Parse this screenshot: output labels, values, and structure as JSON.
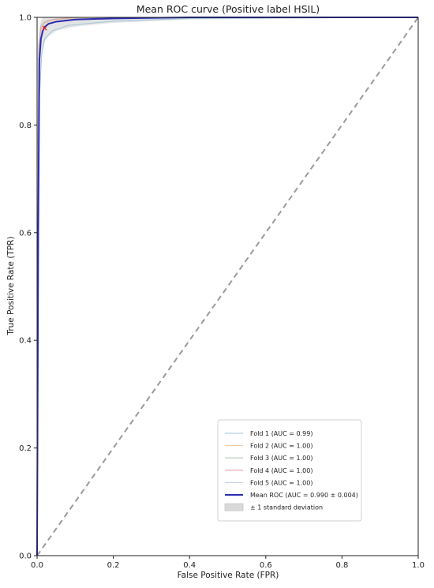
{
  "chart_data": {
    "type": "line",
    "title": "Mean ROC curve (Positive label HSIL)",
    "xlabel": "False Positive Rate (FPR)",
    "ylabel": "True Positive Rate (TPR)",
    "xlim": [
      0,
      1
    ],
    "ylim": [
      0,
      1
    ],
    "xticks": [
      "0.0",
      "0.2",
      "0.4",
      "0.6",
      "0.8",
      "1.0"
    ],
    "yticks": [
      "0.0",
      "0.2",
      "0.4",
      "0.6",
      "0.8",
      "1.0"
    ],
    "grid": false,
    "legend_position": "lower-right",
    "chance_line": {
      "x": [
        0,
        1
      ],
      "y": [
        0,
        1
      ],
      "color": "#9a9a9a"
    },
    "series": [
      {
        "name": "Fold 1 (AUC = 0.99)",
        "color": "#9ec5dd",
        "x": [
          0,
          0.003,
          0.006,
          0.012,
          0.02,
          0.04,
          0.08,
          0.2,
          0.4,
          1.0
        ],
        "y": [
          0,
          0.55,
          0.85,
          0.93,
          0.96,
          0.975,
          0.985,
          0.993,
          0.998,
          1.0
        ]
      },
      {
        "name": "Fold 2 (AUC = 1.00)",
        "color": "#f0c9a6",
        "x": [
          0,
          0.002,
          0.005,
          0.01,
          0.02,
          0.05,
          0.1,
          0.3,
          1.0
        ],
        "y": [
          0,
          0.7,
          0.93,
          0.975,
          0.99,
          0.996,
          0.998,
          1.0,
          1.0
        ]
      },
      {
        "name": "Fold 3 (AUC = 1.00)",
        "color": "#b9c9b9",
        "x": [
          0,
          0.002,
          0.004,
          0.01,
          0.02,
          0.05,
          0.12,
          1.0
        ],
        "y": [
          0,
          0.75,
          0.95,
          0.985,
          0.993,
          0.997,
          1.0,
          1.0
        ]
      },
      {
        "name": "Fold 4 (AUC = 1.00)",
        "color": "#e6a3a3",
        "x": [
          0,
          0.002,
          0.005,
          0.01,
          0.02,
          0.04,
          0.1,
          1.0
        ],
        "y": [
          0,
          0.72,
          0.94,
          0.98,
          0.99,
          0.996,
          1.0,
          1.0
        ]
      },
      {
        "name": "Fold 5 (AUC = 1.00)",
        "color": "#c7d0e6",
        "x": [
          0,
          0.002,
          0.005,
          0.01,
          0.02,
          0.05,
          0.1,
          0.25,
          1.0
        ],
        "y": [
          0,
          0.68,
          0.92,
          0.97,
          0.985,
          0.993,
          0.997,
          1.0,
          1.0
        ]
      },
      {
        "name": "Mean ROC (AUC = 0.990 ± 0.004)",
        "color": "#2b2bb3",
        "x": [
          0,
          0.003,
          0.006,
          0.01,
          0.015,
          0.02,
          0.03,
          0.05,
          0.1,
          0.2,
          0.4,
          1.0
        ],
        "y": [
          0,
          0.6,
          0.92,
          0.96,
          0.975,
          0.982,
          0.988,
          0.992,
          0.996,
          0.998,
          1.0,
          1.0
        ]
      }
    ],
    "std_band": {
      "name": "± 1 standard deviation",
      "color": "#d9d9d9",
      "x": [
        0,
        0.003,
        0.006,
        0.01,
        0.015,
        0.02,
        0.03,
        0.05,
        0.1,
        0.2,
        0.4,
        1.0
      ],
      "lower": [
        0,
        0.5,
        0.86,
        0.925,
        0.945,
        0.955,
        0.965,
        0.975,
        0.983,
        0.99,
        0.996,
        1.0
      ],
      "upper": [
        0,
        0.7,
        0.98,
        0.995,
        1.0,
        1.0,
        1.0,
        1.0,
        1.0,
        1.0,
        1.0,
        1.0
      ]
    },
    "marker": {
      "x": 0.02,
      "y": 0.98,
      "color": "#d62728"
    }
  }
}
